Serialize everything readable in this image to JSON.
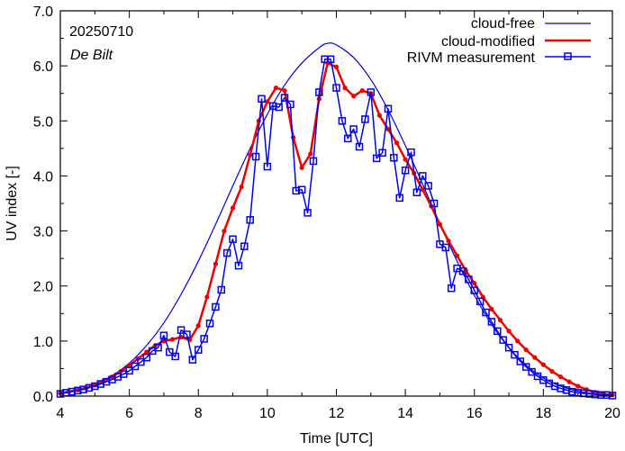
{
  "chart_data": {
    "type": "line",
    "title": "",
    "xlabel": "Time  [UTC]",
    "ylabel": "UV index  [-]",
    "xlim": [
      4,
      20
    ],
    "ylim": [
      0,
      7
    ],
    "xticks": [
      4,
      6,
      8,
      10,
      12,
      14,
      16,
      18,
      20
    ],
    "xtick_labels": [
      "4",
      "6",
      "8",
      "10",
      "12",
      "14",
      "16",
      "18",
      "20"
    ],
    "yticks": [
      0,
      1,
      2,
      3,
      4,
      5,
      6,
      7
    ],
    "ytick_labels": [
      "0.0",
      "1.0",
      "2.0",
      "3.0",
      "4.0",
      "5.0",
      "6.0",
      "7.0"
    ],
    "grid": false,
    "legend_position": "top-right",
    "annotations": [
      "20250710",
      "De Bilt"
    ],
    "colors": {
      "cloud_free": "#0000dd",
      "cloud_modified": "#ee0000",
      "measurement": "#0000ee"
    },
    "series": [
      {
        "name": "cloud-free",
        "style": "line",
        "x": [
          4.0,
          4.5,
          5.0,
          5.5,
          6.0,
          6.5,
          7.0,
          7.5,
          8.0,
          8.5,
          9.0,
          9.5,
          10.0,
          10.5,
          11.0,
          11.5,
          11.75,
          12.0,
          12.5,
          13.0,
          13.5,
          14.0,
          14.5,
          15.0,
          15.5,
          16.0,
          16.5,
          17.0,
          17.5,
          18.0,
          18.5,
          19.0,
          19.5,
          20.0
        ],
        "y": [
          0.06,
          0.12,
          0.22,
          0.37,
          0.6,
          0.92,
          1.33,
          1.85,
          2.45,
          3.12,
          3.82,
          4.5,
          5.12,
          5.65,
          6.05,
          6.33,
          6.41,
          6.38,
          6.15,
          5.75,
          5.2,
          4.55,
          3.85,
          3.13,
          2.45,
          1.83,
          1.3,
          0.88,
          0.56,
          0.33,
          0.18,
          0.09,
          0.04,
          0.02
        ]
      },
      {
        "name": "cloud-modified",
        "style": "line-dot",
        "x": [
          4.0,
          4.25,
          4.5,
          4.75,
          5.0,
          5.25,
          5.5,
          5.75,
          6.0,
          6.25,
          6.5,
          6.75,
          7.0,
          7.25,
          7.5,
          7.75,
          8.0,
          8.25,
          8.5,
          8.75,
          9.0,
          9.25,
          9.5,
          9.75,
          10.0,
          10.25,
          10.5,
          10.75,
          11.0,
          11.25,
          11.5,
          11.75,
          12.0,
          12.25,
          12.5,
          12.75,
          13.0,
          13.25,
          13.5,
          13.75,
          14.0,
          14.25,
          14.5,
          14.75,
          15.0,
          15.25,
          15.5,
          15.75,
          16.0,
          16.25,
          16.5,
          16.75,
          17.0,
          17.25,
          17.5,
          17.75,
          18.0,
          18.25,
          18.5,
          18.75,
          19.0,
          19.25,
          19.5,
          19.75,
          20.0
        ],
        "y": [
          0.05,
          0.08,
          0.11,
          0.15,
          0.2,
          0.27,
          0.35,
          0.45,
          0.56,
          0.68,
          0.8,
          0.92,
          1.0,
          1.03,
          1.07,
          1.02,
          1.28,
          1.8,
          2.4,
          3.0,
          3.42,
          3.8,
          4.38,
          5.0,
          5.35,
          5.6,
          5.55,
          4.7,
          4.15,
          4.4,
          5.4,
          6.05,
          5.98,
          5.6,
          5.45,
          5.55,
          5.5,
          5.1,
          4.85,
          4.6,
          4.3,
          4.05,
          3.75,
          3.45,
          3.12,
          2.82,
          2.55,
          2.28,
          2.05,
          1.8,
          1.58,
          1.38,
          1.18,
          1.0,
          0.84,
          0.7,
          0.57,
          0.45,
          0.35,
          0.26,
          0.18,
          0.12,
          0.07,
          0.04,
          0.02
        ]
      },
      {
        "name": "RIVM measurement",
        "style": "line-square",
        "x": [
          4.0,
          4.1667,
          4.3333,
          4.5,
          4.6667,
          4.8333,
          5.0,
          5.1667,
          5.3333,
          5.5,
          5.6667,
          5.8333,
          6.0,
          6.1667,
          6.3333,
          6.5,
          6.6667,
          6.8333,
          7.0,
          7.1667,
          7.3333,
          7.5,
          7.6667,
          7.8333,
          8.0,
          8.1667,
          8.3333,
          8.5,
          8.6667,
          8.8333,
          9.0,
          9.1667,
          9.3333,
          9.5,
          9.6667,
          9.8333,
          10.0,
          10.1667,
          10.3333,
          10.5,
          10.6667,
          10.8333,
          11.0,
          11.1667,
          11.3333,
          11.5,
          11.6667,
          11.8333,
          12.0,
          12.1667,
          12.3333,
          12.5,
          12.6667,
          12.8333,
          13.0,
          13.1667,
          13.3333,
          13.5,
          13.6667,
          13.8333,
          14.0,
          14.1667,
          14.3333,
          14.5,
          14.6667,
          14.8333,
          15.0,
          15.1667,
          15.3333,
          15.5,
          15.6667,
          15.8333,
          16.0,
          16.1667,
          16.3333,
          16.5,
          16.6667,
          16.8333,
          17.0,
          17.1667,
          17.3333,
          17.5,
          17.6667,
          17.8333,
          18.0,
          18.1667,
          18.3333,
          18.5,
          18.6667,
          18.8333,
          19.0,
          19.1667,
          19.3333,
          19.5,
          19.6667,
          19.8333,
          20.0
        ],
        "y": [
          0.04,
          0.06,
          0.08,
          0.1,
          0.12,
          0.15,
          0.18,
          0.22,
          0.26,
          0.3,
          0.35,
          0.4,
          0.46,
          0.54,
          0.62,
          0.7,
          0.82,
          0.88,
          1.1,
          0.8,
          0.72,
          1.2,
          1.12,
          0.66,
          0.84,
          1.04,
          1.32,
          1.62,
          1.93,
          2.6,
          2.85,
          2.37,
          2.72,
          3.2,
          4.35,
          5.4,
          4.17,
          5.27,
          5.25,
          5.42,
          5.3,
          3.73,
          3.75,
          3.33,
          4.27,
          5.52,
          6.12,
          6.12,
          5.6,
          5.0,
          4.68,
          4.85,
          4.53,
          5.03,
          5.52,
          4.32,
          4.42,
          5.22,
          4.33,
          3.6,
          4.1,
          4.43,
          3.7,
          4.0,
          3.82,
          3.5,
          2.76,
          2.7,
          1.96,
          2.32,
          2.27,
          2.12,
          1.92,
          1.72,
          1.52,
          1.35,
          1.18,
          1.02,
          0.88,
          0.75,
          0.63,
          0.53,
          0.44,
          0.36,
          0.29,
          0.23,
          0.18,
          0.14,
          0.11,
          0.08,
          0.06,
          0.05,
          0.04,
          0.03,
          0.02,
          0.02,
          0.01
        ]
      }
    ]
  },
  "legend": {
    "items": [
      "cloud-free",
      "cloud-modified",
      "RIVM measurement"
    ]
  },
  "annotation": {
    "date": "20250710",
    "location": "De Bilt"
  }
}
